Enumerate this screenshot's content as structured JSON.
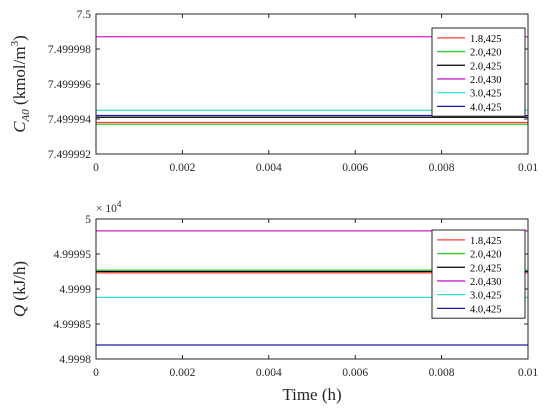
{
  "colors": {
    "axis": "#262626",
    "legend_border": "#262626"
  },
  "chart_data": [
    {
      "type": "line",
      "ylabel_main": "C",
      "ylabel_sub": "A0",
      "ylabel_unit_pre": " (kmol/m",
      "ylabel_unit_sup": "3",
      "ylabel_unit_post": ")",
      "xlabel": "",
      "xlim": [
        0,
        0.01
      ],
      "ylim": [
        7.499992,
        7.5
      ],
      "xticks": [
        0,
        0.002,
        0.004,
        0.006,
        0.008,
        0.01
      ],
      "xtick_labels": [
        "0",
        "0.002",
        "0.004",
        "0.006",
        "0.008",
        "0.01"
      ],
      "yticks": [
        7.499992,
        7.499994,
        7.499996,
        7.499998,
        7.5
      ],
      "ytick_labels": [
        "7.499992",
        "7.499994",
        "7.499996",
        "7.499998",
        "7.5"
      ],
      "exponent_label": "",
      "legend_position": "top-right",
      "series": [
        {
          "name": "1.8,425",
          "color": "#ff3b2f",
          "values": [
            7.4999938,
            7.4999938
          ]
        },
        {
          "name": "2.0,420",
          "color": "#33cc33",
          "values": [
            7.4999937,
            7.4999937
          ]
        },
        {
          "name": "2.0,425",
          "color": "#000000",
          "values": [
            7.4999941,
            7.4999941
          ]
        },
        {
          "name": "2.0,430",
          "color": "#cc22cc",
          "values": [
            7.4999987,
            7.4999987
          ]
        },
        {
          "name": "3.0,425",
          "color": "#33dddd",
          "values": [
            7.4999945,
            7.4999945
          ]
        },
        {
          "name": "4.0,425",
          "color": "#1a1aaa",
          "values": [
            7.4999942,
            7.4999942
          ]
        }
      ]
    },
    {
      "type": "line",
      "ylabel_main": "Q",
      "ylabel_sub": "",
      "ylabel_unit_pre": " (kJ/h)",
      "ylabel_unit_sup": "",
      "ylabel_unit_post": "",
      "xlabel": "Time (h)",
      "xlim": [
        0,
        0.01
      ],
      "ylim": [
        4.9998,
        5.0
      ],
      "xticks": [
        0,
        0.002,
        0.004,
        0.006,
        0.008,
        0.01
      ],
      "xtick_labels": [
        "0",
        "0.002",
        "0.004",
        "0.006",
        "0.008",
        "0.01"
      ],
      "yticks": [
        4.9998,
        4.99985,
        4.9999,
        4.99995,
        5.0
      ],
      "ytick_labels": [
        "4.9998",
        "4.99985",
        "4.9999",
        "4.99995",
        "5"
      ],
      "exponent_label": "× 10",
      "exponent_sup": "4",
      "legend_position": "middle-right",
      "series": [
        {
          "name": "1.8,425",
          "color": "#ff3b2f",
          "values": [
            4.999923,
            4.999923
          ]
        },
        {
          "name": "2.0,420",
          "color": "#33cc33",
          "values": [
            4.999927,
            4.999927
          ]
        },
        {
          "name": "2.0,425",
          "color": "#000000",
          "values": [
            4.999925,
            4.999925
          ]
        },
        {
          "name": "2.0,430",
          "color": "#cc22cc",
          "values": [
            4.999983,
            4.999983
          ]
        },
        {
          "name": "3.0,425",
          "color": "#33dddd",
          "values": [
            4.999888,
            4.999888
          ]
        },
        {
          "name": "4.0,425",
          "color": "#1a1aaa",
          "values": [
            4.99982,
            4.99982
          ]
        }
      ]
    }
  ]
}
